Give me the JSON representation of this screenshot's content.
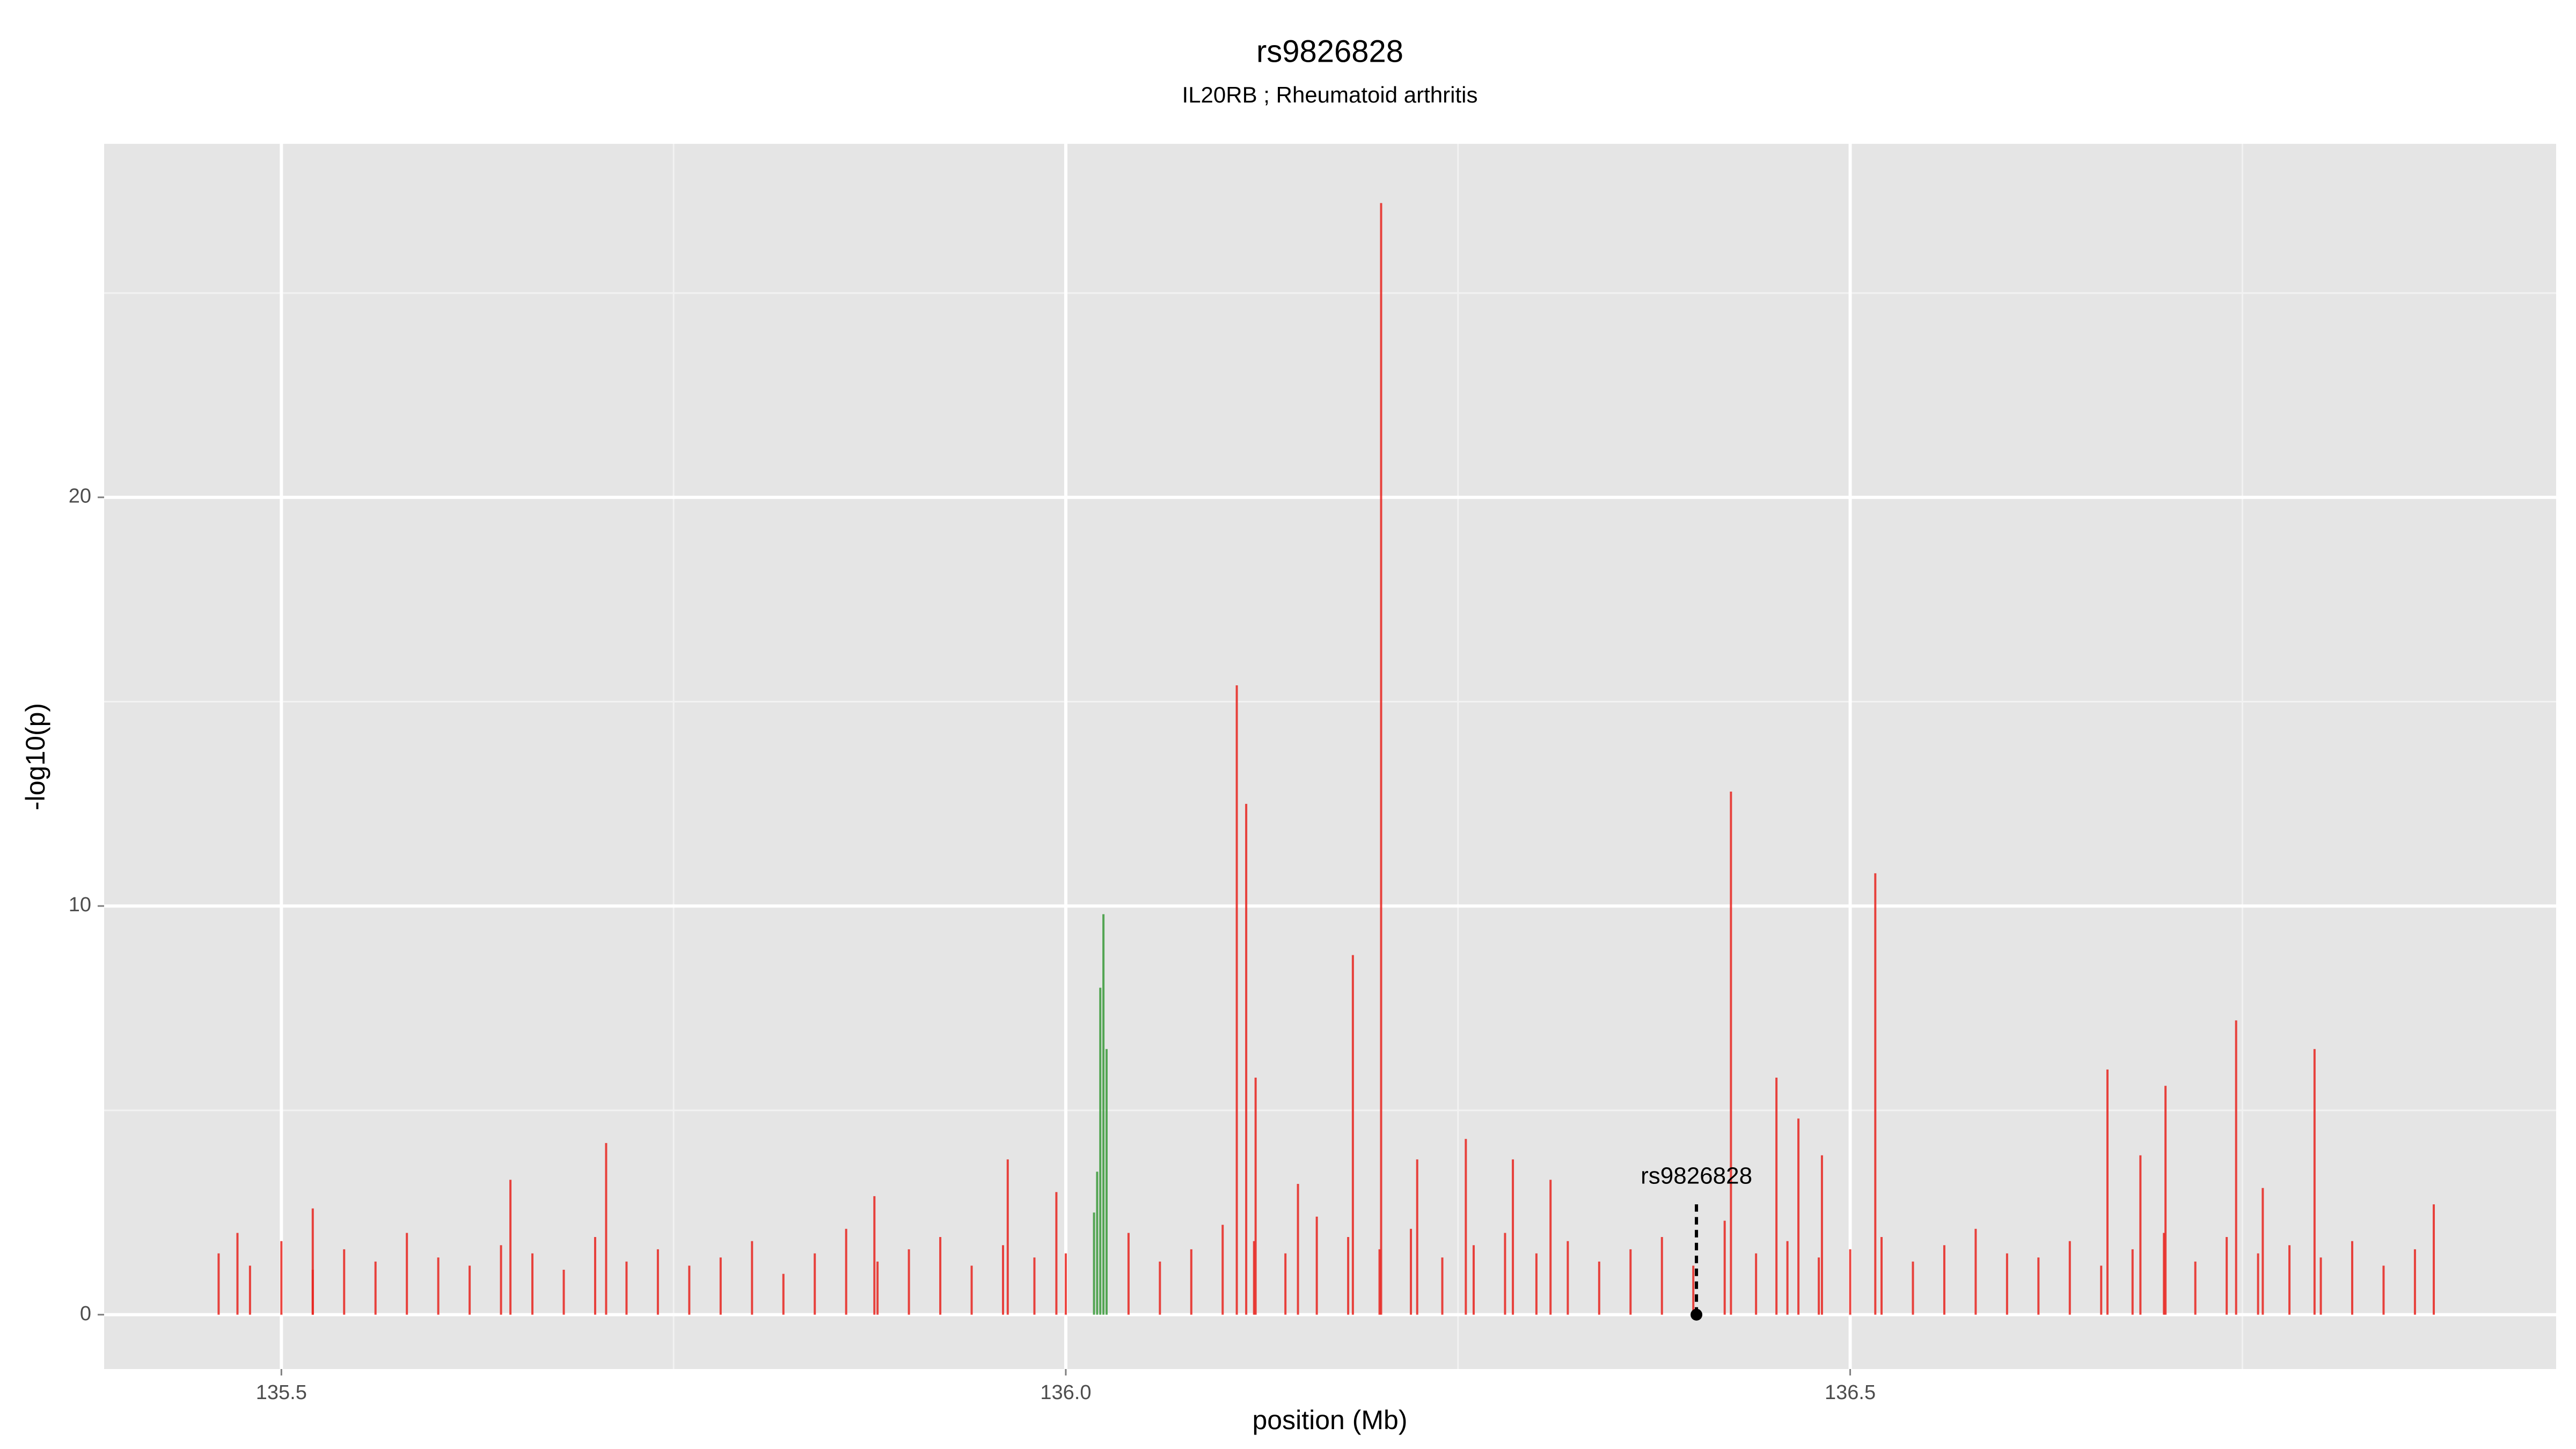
{
  "chart_data": {
    "type": "needle",
    "title": "rs9826828",
    "subtitle": "IL20RB ; Rheumatoid arthritis",
    "xlabel": "position (Mb)",
    "ylabel": "-log10(p)",
    "xlim": [
      135.387,
      136.95
    ],
    "ylim": [
      -1.33,
      28.65
    ],
    "xticks": [
      {
        "value": 135.5,
        "label": "135.5"
      },
      {
        "value": 136,
        "label": "136.0"
      },
      {
        "value": 136.5,
        "label": "136.5"
      }
    ],
    "yticks": [
      0,
      10,
      20
    ],
    "xminorticks": [
      135.75,
      136.25,
      136.75
    ],
    "yminorticks": [
      5,
      15,
      25
    ],
    "grid": true,
    "series": [
      {
        "color": "#e8251f",
        "x": [
          135.46,
          135.48,
          135.5,
          135.52,
          135.54,
          135.56,
          135.58,
          135.6,
          135.62,
          135.64,
          135.66,
          135.68,
          135.7,
          135.72,
          135.74,
          135.76,
          135.78,
          135.8,
          135.82,
          135.84,
          135.86,
          135.88,
          135.9,
          135.92,
          135.94,
          135.96,
          135.98,
          136.0,
          136.04,
          136.06,
          136.08,
          136.1,
          136.12,
          136.14,
          136.16,
          136.18,
          136.2,
          136.22,
          136.24,
          136.26,
          136.28,
          136.3,
          136.32,
          136.34,
          136.36,
          136.38,
          136.4,
          136.42,
          136.44,
          136.46,
          136.48,
          136.5,
          136.52,
          136.54,
          136.56,
          136.58,
          136.6,
          136.62,
          136.64,
          136.66,
          136.68,
          136.7,
          136.72,
          136.74,
          136.76,
          136.78,
          136.8,
          136.82,
          136.84,
          136.86,
          136.201,
          136.109,
          136.115,
          136.121,
          136.183,
          136.424,
          136.453,
          136.467,
          136.482,
          136.516,
          136.664,
          136.685,
          136.701,
          136.746,
          136.763,
          136.796,
          136.872,
          135.707,
          135.646,
          135.963,
          135.994,
          135.878,
          136.255,
          136.224,
          136.309,
          136.285,
          135.52,
          135.472,
          136.148
        ],
        "values": [
          1.5,
          1.2,
          1.8,
          1.1,
          1.6,
          1.3,
          2.0,
          1.4,
          1.2,
          1.7,
          1.5,
          1.1,
          1.9,
          1.3,
          1.6,
          1.2,
          1.4,
          1.8,
          1.0,
          1.5,
          2.1,
          1.3,
          1.6,
          1.9,
          1.2,
          1.7,
          1.4,
          1.5,
          2.0,
          1.3,
          1.6,
          2.2,
          1.8,
          1.5,
          2.4,
          1.9,
          1.6,
          2.1,
          1.4,
          1.7,
          2.0,
          1.5,
          1.8,
          1.3,
          1.6,
          1.9,
          1.2,
          2.3,
          1.5,
          1.8,
          1.4,
          1.6,
          1.9,
          1.3,
          1.7,
          2.1,
          1.5,
          1.4,
          1.8,
          1.2,
          1.6,
          2.0,
          1.3,
          1.9,
          1.5,
          1.7,
          1.4,
          1.8,
          1.2,
          1.6,
          27.2,
          15.4,
          12.5,
          5.8,
          8.8,
          12.8,
          5.8,
          4.8,
          3.9,
          10.8,
          6.0,
          3.9,
          5.6,
          7.2,
          3.1,
          6.5,
          2.7,
          4.2,
          3.3,
          3.8,
          3.0,
          2.9,
          4.3,
          3.8,
          3.3,
          3.8,
          2.6,
          2.0,
          3.2
        ]
      },
      {
        "color": "#3a9a3a",
        "x": [
          136.018,
          136.02,
          136.022,
          136.024,
          136.026
        ],
        "values": [
          2.5,
          3.5,
          8.0,
          9.8,
          6.5
        ]
      }
    ],
    "annotation": {
      "label": "rs9826828",
      "x": 136.402,
      "y": 0,
      "line_top": 2.7
    }
  }
}
